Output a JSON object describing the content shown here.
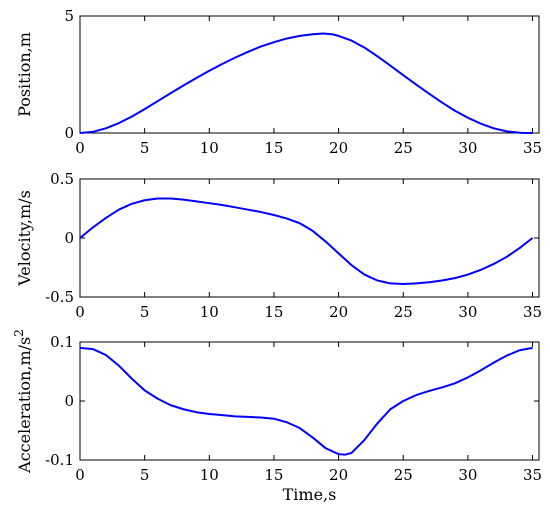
{
  "chart_data": [
    {
      "type": "line",
      "ylabel": "Position,m",
      "xlabel": "",
      "xlim": [
        0,
        35.5
      ],
      "ylim": [
        0,
        5
      ],
      "xticks": [
        "0",
        "5",
        "10",
        "15",
        "20",
        "25",
        "30",
        "35"
      ],
      "yticks": [
        "0",
        "5"
      ],
      "grid": false,
      "color": "#0000ff",
      "x": [
        0,
        1,
        2,
        3,
        4,
        5,
        6,
        7,
        8,
        9,
        10,
        11,
        12,
        13,
        14,
        15,
        16,
        17,
        18,
        18.8,
        19.5,
        20,
        21,
        22,
        23,
        24,
        25,
        26,
        27,
        28,
        29,
        30,
        31,
        32,
        33,
        34,
        34.5,
        35
      ],
      "y": [
        0,
        0.05,
        0.2,
        0.42,
        0.7,
        1.02,
        1.36,
        1.7,
        2.03,
        2.35,
        2.66,
        2.95,
        3.22,
        3.47,
        3.7,
        3.88,
        4.04,
        4.15,
        4.22,
        4.25,
        4.22,
        4.15,
        3.95,
        3.65,
        3.28,
        2.88,
        2.47,
        2.07,
        1.68,
        1.3,
        0.95,
        0.65,
        0.4,
        0.2,
        0.07,
        0.01,
        0,
        0
      ]
    },
    {
      "type": "line",
      "ylabel": "Velocity,m/s",
      "xlabel": "",
      "xlim": [
        0,
        35.5
      ],
      "ylim": [
        -0.5,
        0.5
      ],
      "xticks": [
        "0",
        "5",
        "10",
        "15",
        "20",
        "25",
        "30",
        "35"
      ],
      "yticks": [
        "-0.5",
        "0",
        "0.5"
      ],
      "grid": false,
      "color": "#0000ff",
      "x": [
        0,
        1,
        2,
        3,
        4,
        5,
        6,
        7,
        8,
        9,
        10,
        11,
        12,
        13,
        14,
        15,
        16,
        17,
        18,
        19,
        20,
        21,
        22,
        23,
        24,
        25,
        26,
        27,
        28,
        29,
        30,
        31,
        32,
        33,
        34,
        35
      ],
      "y": [
        0,
        0.09,
        0.17,
        0.24,
        0.29,
        0.32,
        0.335,
        0.335,
        0.325,
        0.31,
        0.295,
        0.28,
        0.26,
        0.24,
        0.22,
        0.195,
        0.165,
        0.125,
        0.06,
        -0.03,
        -0.13,
        -0.23,
        -0.31,
        -0.36,
        -0.385,
        -0.39,
        -0.385,
        -0.375,
        -0.36,
        -0.34,
        -0.31,
        -0.27,
        -0.22,
        -0.16,
        -0.085,
        0
      ]
    },
    {
      "type": "line",
      "ylabel": "Acceleration,m/s",
      "ylabel_superscript": "2",
      "xlabel": "Time,s",
      "xlim": [
        0,
        35.5
      ],
      "ylim": [
        -0.1,
        0.1
      ],
      "xticks": [
        "0",
        "5",
        "10",
        "15",
        "20",
        "25",
        "30",
        "35"
      ],
      "yticks": [
        "-0.1",
        "0",
        "0.1"
      ],
      "grid": false,
      "color": "#0000ff",
      "x": [
        0,
        1,
        2,
        3,
        4,
        5,
        6,
        7,
        8,
        9,
        10,
        11,
        12,
        13,
        14,
        15,
        16,
        17,
        18,
        19,
        20,
        20.5,
        21,
        22,
        23,
        24,
        25,
        26,
        27,
        28,
        29,
        30,
        31,
        32,
        33,
        34,
        35
      ],
      "y": [
        0.09,
        0.088,
        0.078,
        0.06,
        0.038,
        0.018,
        0.004,
        -0.007,
        -0.014,
        -0.019,
        -0.022,
        -0.024,
        -0.026,
        -0.027,
        -0.028,
        -0.03,
        -0.036,
        -0.046,
        -0.062,
        -0.08,
        -0.09,
        -0.091,
        -0.088,
        -0.066,
        -0.038,
        -0.014,
        0,
        0.01,
        0.017,
        0.023,
        0.03,
        0.04,
        0.052,
        0.065,
        0.077,
        0.086,
        0.09
      ]
    }
  ]
}
